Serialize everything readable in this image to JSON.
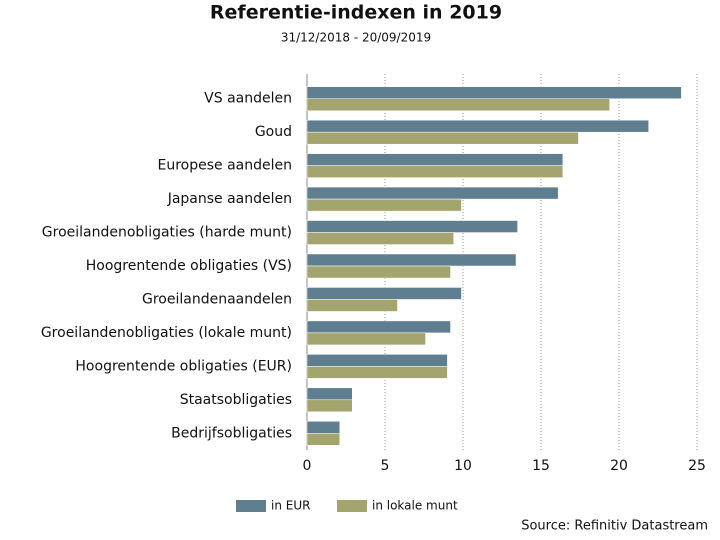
{
  "chart_data": {
    "type": "hbar",
    "title": "Referentie-indexen in 2019",
    "subtitle": "31/12/2018 - 20/09/2019",
    "categories": [
      "VS aandelen",
      "Goud",
      "Europese aandelen",
      "Japanse aandelen",
      "Groeilandenobligaties (harde munt)",
      "Hoogrentende obligaties (VS)",
      "Groeilandenaandelen",
      "Groeilandenobligaties (lokale munt)",
      "Hoogrentende obligaties (EUR)",
      "Staatsobligaties",
      "Bedrijfsobligaties"
    ],
    "series": [
      {
        "name": "in EUR",
        "color": "#5f7f91",
        "values": [
          24.0,
          21.9,
          16.4,
          16.1,
          13.5,
          13.4,
          9.9,
          9.2,
          9.0,
          2.9,
          2.1
        ]
      },
      {
        "name": "in lokale munt",
        "color": "#a3a46e",
        "values": [
          19.4,
          17.4,
          16.4,
          9.9,
          9.4,
          9.2,
          5.8,
          7.6,
          9.0,
          2.9,
          2.1
        ]
      }
    ],
    "xlim": [
      0,
      25
    ],
    "xticks": [
      0,
      5,
      10,
      15,
      20,
      25
    ],
    "grid": true,
    "legend": "bottom",
    "source": "Source: Refinitiv Datastream"
  }
}
